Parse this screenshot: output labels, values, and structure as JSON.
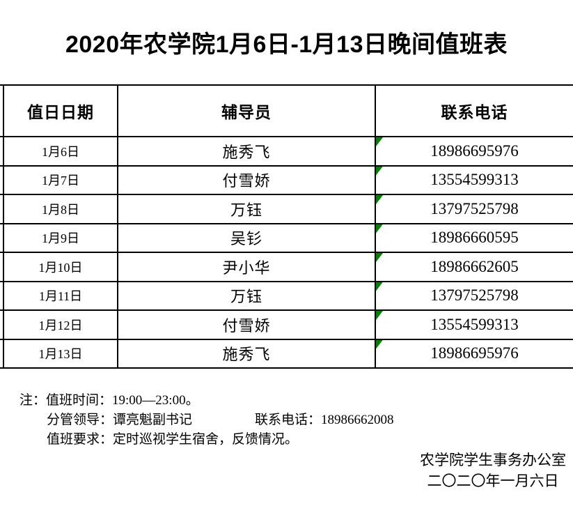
{
  "title": "2020年农学院1月6日-1月13日晚间值班表",
  "table": {
    "headers": [
      "值日日期",
      "辅导员",
      "联系电话"
    ],
    "rows": [
      {
        "date": "1月6日",
        "counselor": "施秀飞",
        "phone": "18986695976"
      },
      {
        "date": "1月7日",
        "counselor": "付雪娇",
        "phone": "13554599313"
      },
      {
        "date": "1月8日",
        "counselor": "万钰",
        "phone": "13797525798"
      },
      {
        "date": "1月9日",
        "counselor": "吴钐",
        "phone": "18986660595"
      },
      {
        "date": "1月10日",
        "counselor": "尹小华",
        "phone": "18986662605"
      },
      {
        "date": "1月11日",
        "counselor": "万钰",
        "phone": "13797525798"
      },
      {
        "date": "1月12日",
        "counselor": "付雪娇",
        "phone": "13554599313"
      },
      {
        "date": "1月13日",
        "counselor": "施秀飞",
        "phone": "18986695976"
      }
    ],
    "cell_flag_color": "#0b7d0b"
  },
  "notes": {
    "label": "注：",
    "duty_time": "值班时间：19:00—23:00。",
    "leader": "分管领导：谭亮魁副书记",
    "leader_phone": "联系电话：18986662008",
    "requirement": "值班要求：定时巡视学生宿舍，反馈情况。"
  },
  "signature": {
    "org": "农学院学生事务办公室",
    "date": "二〇二〇年一月六日"
  }
}
